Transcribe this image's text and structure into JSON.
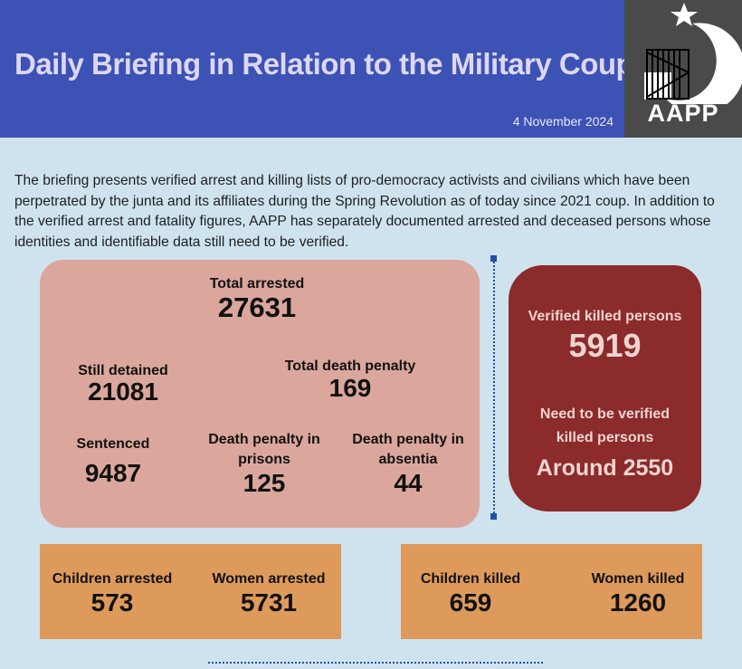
{
  "header": {
    "title": "Daily Briefing in Relation to the Military Coup",
    "date": "4 November 2024",
    "logo_text": "AAPP"
  },
  "intro": "The briefing presents verified arrest and killing lists of pro-democracy activists and civilians which have been perpetrated by the junta and its affiliates during the Spring Revolution as of today since 2021 coup. In addition to the verified arrest and fatality figures, AAPP has separately documented arrested and deceased persons whose identities and identifiable data still need to be verified.",
  "arrests": {
    "total_arrested": {
      "label": "Total arrested",
      "value": "27631"
    },
    "still_detained": {
      "label": "Still detained",
      "value": "21081"
    },
    "total_death_penalty": {
      "label": "Total death penalty",
      "value": "169"
    },
    "sentenced": {
      "label": "Sentenced",
      "value": "9487"
    },
    "death_penalty_prisons": {
      "label": "Death penalty in prisons",
      "value": "125"
    },
    "death_penalty_absentia": {
      "label": "Death penalty in absentia",
      "value": "44"
    }
  },
  "killed": {
    "verified": {
      "label": "Verified killed persons",
      "value": "5919"
    },
    "unverified": {
      "label": "Need to be verified killed persons",
      "value": "Around 2550"
    }
  },
  "demographics": {
    "children_arrested": {
      "label": "Children arrested",
      "value": "573"
    },
    "women_arrested": {
      "label": "Women arrested",
      "value": "5731"
    },
    "children_killed": {
      "label": "Children killed",
      "value": "659"
    },
    "women_killed": {
      "label": "Women killed",
      "value": "1260"
    }
  },
  "colors": {
    "header": "#3d52b5",
    "background": "#cfe3ef",
    "arrest_box": "#dba79c",
    "killed_box": "#8b2b2b",
    "demographic_box": "#de9a5b",
    "logo_bg": "#4a4a4a"
  }
}
